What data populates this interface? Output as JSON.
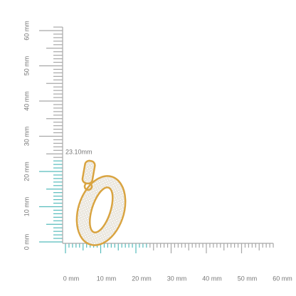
{
  "vertical_ruler": {
    "labels": [
      "0 mm",
      "10 mm",
      "20 mm",
      "30 mm",
      "40 mm",
      "50 mm",
      "60 mm"
    ]
  },
  "horizontal_ruler": {
    "labels": [
      "0 mm",
      "10 mm",
      "20 mm",
      "30 mm",
      "40 mm",
      "50 mm",
      "60 mm"
    ]
  },
  "dimension": {
    "label": "23.10mm"
  }
}
